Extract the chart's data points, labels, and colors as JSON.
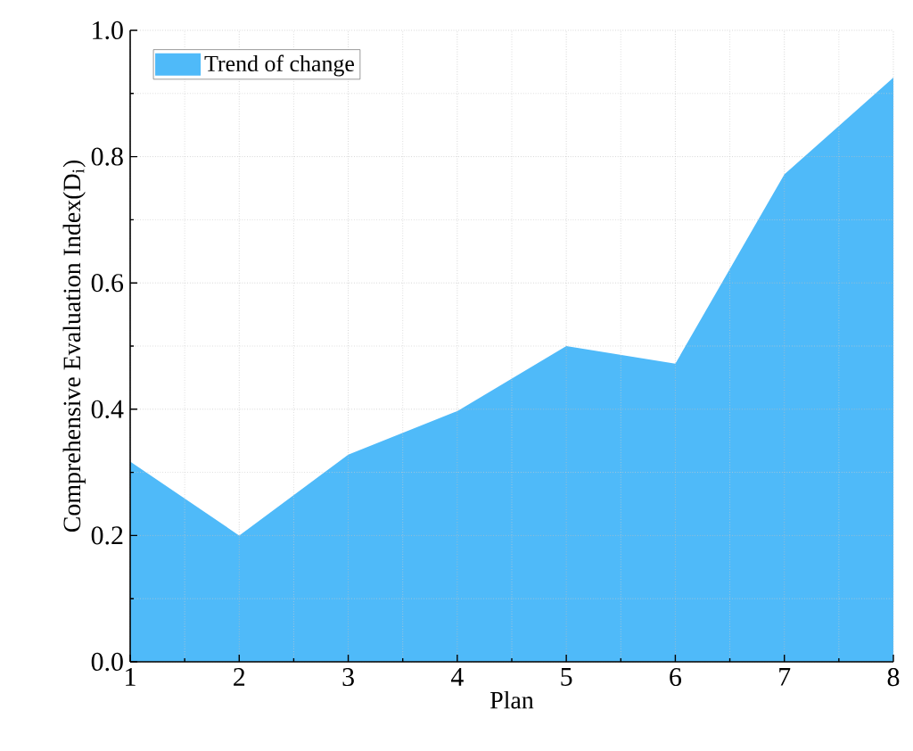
{
  "chart_data": {
    "type": "area",
    "xlabel": "Plan",
    "ylabel": "Comprehensive Evaluation Index(D$_{i}$)",
    "x": [
      1,
      2,
      3,
      4,
      5,
      6,
      7,
      8
    ],
    "series": [
      {
        "name": "Trend of change",
        "color": "#4fbaf9",
        "values": [
          0.317,
          0.2,
          0.328,
          0.397,
          0.5,
          0.472,
          0.772,
          0.925
        ]
      }
    ],
    "xlim": [
      1,
      8
    ],
    "xticks": [
      1,
      2,
      3,
      4,
      5,
      6,
      7,
      8
    ],
    "ylim": [
      0,
      1
    ],
    "yticks": [
      {
        "value": 0,
        "label": "0.0"
      },
      {
        "value": 0.2,
        "label": "0.2"
      },
      {
        "value": 0.4,
        "label": "0.4"
      },
      {
        "value": 0.6,
        "label": "0.6"
      },
      {
        "value": 0.8,
        "label": "0.8"
      },
      {
        "value": 1,
        "label": "1.0"
      }
    ],
    "grid": true,
    "legend": "top left"
  }
}
